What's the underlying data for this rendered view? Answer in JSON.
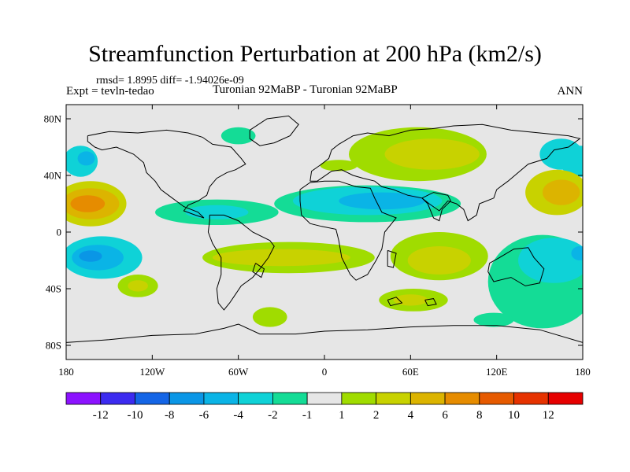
{
  "header": {
    "title": "Streamfunction Perturbation at 200 hPa (km2/s)",
    "rmsd_line": "rmsd= 1.8995 diff= -1.94026e-09",
    "expt_line": "Expt = tevln-tedao",
    "subtitle": "Turonian  92MaBP - Turonian  92MaBP",
    "season": "ANN"
  },
  "map": {
    "lon_range": [
      -180,
      180
    ],
    "lat_range": [
      -90,
      90
    ],
    "lon_ticks": [
      {
        "value": -180,
        "label": "180"
      },
      {
        "value": -120,
        "label": "120W"
      },
      {
        "value": -60,
        "label": "60W"
      },
      {
        "value": 0,
        "label": "0"
      },
      {
        "value": 60,
        "label": "60E"
      },
      {
        "value": 120,
        "label": "120E"
      },
      {
        "value": 180,
        "label": "180"
      }
    ],
    "lat_ticks": [
      {
        "value": 80,
        "label": "80N"
      },
      {
        "value": 40,
        "label": "40N"
      },
      {
        "value": 0,
        "label": "0"
      },
      {
        "value": -40,
        "label": "40S"
      },
      {
        "value": -80,
        "label": "80S"
      }
    ],
    "background_color": "#e6e6e6",
    "features": [
      {
        "name": "pacific-north-negative",
        "lon": 178,
        "lat": 50,
        "rlon": 14,
        "rlat": 11,
        "level": -3
      },
      {
        "name": "pacific-north-negative-east",
        "lon": -170,
        "lat": 50,
        "rlon": 12,
        "rlat": 11,
        "level": -3
      },
      {
        "name": "pacific-north-core",
        "lon": -166,
        "lat": 52,
        "rlon": 6,
        "rlat": 5,
        "level": -5
      },
      {
        "name": "pacific-positive-band",
        "lon": -163,
        "lat": 20,
        "rlon": 25,
        "rlat": 16,
        "level": 3
      },
      {
        "name": "pacific-positive-mid",
        "lon": -163,
        "lat": 20,
        "rlon": 20,
        "rlat": 11,
        "level": 5
      },
      {
        "name": "pacific-positive-core",
        "lon": -165,
        "lat": 20,
        "rlon": 12,
        "rlat": 6,
        "level": 7
      },
      {
        "name": "pacific-positive-west",
        "lon": 162,
        "lat": 28,
        "rlon": 22,
        "rlat": 16,
        "level": 3
      },
      {
        "name": "pacific-positive-west-core",
        "lon": 165,
        "lat": 28,
        "rlon": 13,
        "rlat": 9,
        "level": 5
      },
      {
        "name": "pacific-south-negative",
        "lon": -155,
        "lat": -18,
        "rlon": 28,
        "rlat": 15,
        "level": -3
      },
      {
        "name": "pacific-south-negative-mid",
        "lon": -158,
        "lat": -18,
        "rlon": 18,
        "rlat": 9,
        "level": -5
      },
      {
        "name": "pacific-south-core",
        "lon": -163,
        "lat": -17,
        "rlon": 8,
        "rlat": 4,
        "level": -7
      },
      {
        "name": "south-pacific-positive",
        "lon": -130,
        "lat": -38,
        "rlon": 14,
        "rlat": 8,
        "level": 1.5
      },
      {
        "name": "south-pacific-positive-core",
        "lon": -130,
        "lat": -38,
        "rlon": 7,
        "rlat": 4,
        "level": 3
      },
      {
        "name": "america-negative-band",
        "lon": -75,
        "lat": 14,
        "rlon": 43,
        "rlat": 9,
        "level": -1.5
      },
      {
        "name": "america-negative-core",
        "lon": -75,
        "lat": 14,
        "rlon": 22,
        "rlat": 5,
        "level": -3
      },
      {
        "name": "tethys-negative-band",
        "lon": 30,
        "lat": 20,
        "rlon": 65,
        "rlat": 13,
        "level": -1.5
      },
      {
        "name": "tethys-negative-mid",
        "lon": 30,
        "lat": 22,
        "rlon": 52,
        "rlat": 10,
        "level": -3
      },
      {
        "name": "tethys-negative-core",
        "lon": 40,
        "lat": 22,
        "rlon": 30,
        "rlat": 6,
        "level": -5
      },
      {
        "name": "north-atlantic-negative",
        "lon": -60,
        "lat": 68,
        "rlon": 12,
        "rlat": 6,
        "level": -1.5
      },
      {
        "name": "eurasia-positive",
        "lon": 65,
        "lat": 55,
        "rlon": 48,
        "rlat": 19,
        "level": 1.5
      },
      {
        "name": "eurasia-positive-core",
        "lon": 75,
        "lat": 55,
        "rlon": 33,
        "rlat": 11,
        "level": 3
      },
      {
        "name": "europe-positive",
        "lon": 10,
        "lat": 47,
        "rlon": 13,
        "rlat": 4,
        "level": 1.5
      },
      {
        "name": "north-pacific-west-negative",
        "lon": 165,
        "lat": 55,
        "rlon": 15,
        "rlat": 11,
        "level": -3
      },
      {
        "name": "south-america-positive-band",
        "lon": -25,
        "lat": -18,
        "rlon": 60,
        "rlat": 11,
        "level": 1.5
      },
      {
        "name": "south-america-positive-core",
        "lon": -30,
        "lat": -18,
        "rlon": 48,
        "rlat": 6,
        "level": 3
      },
      {
        "name": "indian-positive",
        "lon": 80,
        "lat": -17,
        "rlon": 34,
        "rlat": 17,
        "level": 1.5
      },
      {
        "name": "indian-positive-core",
        "lon": 80,
        "lat": -20,
        "rlon": 22,
        "rlat": 10,
        "level": 3
      },
      {
        "name": "indian-south-positive",
        "lon": 62,
        "lat": -48,
        "rlon": 24,
        "rlat": 8,
        "level": 1.5
      },
      {
        "name": "indian-south-core",
        "lon": 60,
        "lat": -48,
        "rlon": 12,
        "rlat": 4,
        "level": 3
      },
      {
        "name": "southern-ocean-positive",
        "lon": -38,
        "lat": -60,
        "rlon": 12,
        "rlat": 7,
        "level": 1.5
      },
      {
        "name": "southeast-pacific-negative",
        "lon": 152,
        "lat": -35,
        "rlon": 38,
        "rlat": 33,
        "level": -1.5
      },
      {
        "name": "southeast-pacific-negative-mid",
        "lon": 160,
        "lat": -20,
        "rlon": 25,
        "rlat": 16,
        "level": -3
      },
      {
        "name": "southeast-pacific-negative-core",
        "lon": 178,
        "lat": -15,
        "rlon": 6,
        "rlat": 5,
        "level": -5
      },
      {
        "name": "southern-pacific-patch",
        "lon": 118,
        "lat": -62,
        "rlon": 14,
        "rlat": 5,
        "level": -1.5
      }
    ],
    "coastlines": [
      {
        "name": "north-america",
        "points": [
          [
            -165,
            68
          ],
          [
            -150,
            71
          ],
          [
            -130,
            70
          ],
          [
            -110,
            72
          ],
          [
            -95,
            70
          ],
          [
            -85,
            67
          ],
          [
            -78,
            62
          ],
          [
            -65,
            60
          ],
          [
            -58,
            52
          ],
          [
            -55,
            48
          ],
          [
            -62,
            44
          ],
          [
            -68,
            42
          ],
          [
            -75,
            38
          ],
          [
            -80,
            32
          ],
          [
            -82,
            26
          ],
          [
            -88,
            22
          ],
          [
            -95,
            19
          ],
          [
            -98,
            15
          ],
          [
            -90,
            12
          ],
          [
            -84,
            10
          ],
          [
            -88,
            14
          ],
          [
            -98,
            18
          ],
          [
            -106,
            24
          ],
          [
            -114,
            30
          ],
          [
            -118,
            36
          ],
          [
            -124,
            42
          ],
          [
            -126,
            49
          ],
          [
            -133,
            55
          ],
          [
            -145,
            60
          ],
          [
            -155,
            58
          ],
          [
            -160,
            60
          ],
          [
            -165,
            64
          ],
          [
            -165,
            68
          ]
        ]
      },
      {
        "name": "greenland",
        "points": [
          [
            -52,
            72
          ],
          [
            -40,
            80
          ],
          [
            -25,
            82
          ],
          [
            -18,
            76
          ],
          [
            -24,
            68
          ],
          [
            -35,
            63
          ],
          [
            -45,
            61
          ],
          [
            -52,
            66
          ],
          [
            -52,
            72
          ]
        ]
      },
      {
        "name": "south-america",
        "points": [
          [
            -80,
            12
          ],
          [
            -70,
            12
          ],
          [
            -60,
            8
          ],
          [
            -50,
            0
          ],
          [
            -38,
            -6
          ],
          [
            -35,
            -10
          ],
          [
            -39,
            -18
          ],
          [
            -45,
            -26
          ],
          [
            -50,
            -32
          ],
          [
            -58,
            -38
          ],
          [
            -62,
            -44
          ],
          [
            -66,
            -50
          ],
          [
            -70,
            -55
          ],
          [
            -74,
            -50
          ],
          [
            -75,
            -40
          ],
          [
            -72,
            -30
          ],
          [
            -72,
            -18
          ],
          [
            -78,
            -8
          ],
          [
            -81,
            0
          ],
          [
            -80,
            8
          ],
          [
            -80,
            12
          ]
        ]
      },
      {
        "name": "africa",
        "points": [
          [
            -17,
            30
          ],
          [
            -10,
            35
          ],
          [
            0,
            36
          ],
          [
            10,
            36
          ],
          [
            22,
            32
          ],
          [
            32,
            31
          ],
          [
            35,
            24
          ],
          [
            40,
            14
          ],
          [
            50,
            10
          ],
          [
            42,
            0
          ],
          [
            40,
            -12
          ],
          [
            36,
            -20
          ],
          [
            30,
            -30
          ],
          [
            22,
            -34
          ],
          [
            18,
            -30
          ],
          [
            12,
            -18
          ],
          [
            10,
            -6
          ],
          [
            8,
            2
          ],
          [
            -2,
            4
          ],
          [
            -10,
            6
          ],
          [
            -16,
            12
          ],
          [
            -17,
            22
          ],
          [
            -17,
            30
          ]
        ]
      },
      {
        "name": "eurasia",
        "points": [
          [
            -10,
            36
          ],
          [
            -9,
            43
          ],
          [
            -2,
            48
          ],
          [
            3,
            52
          ],
          [
            5,
            58
          ],
          [
            10,
            62
          ],
          [
            20,
            68
          ],
          [
            30,
            70
          ],
          [
            45,
            68
          ],
          [
            60,
            72
          ],
          [
            75,
            73
          ],
          [
            90,
            75
          ],
          [
            110,
            76
          ],
          [
            130,
            72
          ],
          [
            150,
            70
          ],
          [
            170,
            68
          ],
          [
            178,
            66
          ],
          [
            170,
            60
          ],
          [
            160,
            58
          ],
          [
            155,
            52
          ],
          [
            142,
            48
          ],
          [
            135,
            42
          ],
          [
            128,
            36
          ],
          [
            120,
            30
          ],
          [
            118,
            24
          ],
          [
            108,
            20
          ],
          [
            106,
            12
          ],
          [
            100,
            8
          ],
          [
            97,
            16
          ],
          [
            92,
            20
          ],
          [
            86,
            22
          ],
          [
            80,
            15
          ],
          [
            73,
            20
          ],
          [
            68,
            24
          ],
          [
            58,
            26
          ],
          [
            48,
            30
          ],
          [
            40,
            32
          ],
          [
            35,
            36
          ],
          [
            27,
            38
          ],
          [
            20,
            40
          ],
          [
            12,
            44
          ],
          [
            5,
            43
          ],
          [
            -5,
            36
          ],
          [
            -10,
            36
          ]
        ]
      },
      {
        "name": "india",
        "points": [
          [
            68,
            24
          ],
          [
            72,
            20
          ],
          [
            76,
            10
          ],
          [
            80,
            8
          ],
          [
            82,
            16
          ],
          [
            88,
            22
          ],
          [
            86,
            26
          ],
          [
            76,
            28
          ],
          [
            68,
            24
          ]
        ]
      },
      {
        "name": "australia",
        "points": [
          [
            115,
            -22
          ],
          [
            122,
            -18
          ],
          [
            132,
            -12
          ],
          [
            142,
            -11
          ],
          [
            146,
            -18
          ],
          [
            153,
            -26
          ],
          [
            150,
            -36
          ],
          [
            140,
            -38
          ],
          [
            130,
            -32
          ],
          [
            118,
            -35
          ],
          [
            114,
            -28
          ],
          [
            115,
            -22
          ]
        ]
      },
      {
        "name": "antarctica",
        "points": [
          [
            -180,
            -78
          ],
          [
            -150,
            -76
          ],
          [
            -120,
            -73
          ],
          [
            -90,
            -72
          ],
          [
            -70,
            -68
          ],
          [
            -60,
            -65
          ],
          [
            -45,
            -72
          ],
          [
            -20,
            -72
          ],
          [
            0,
            -70
          ],
          [
            30,
            -69
          ],
          [
            60,
            -67
          ],
          [
            90,
            -66
          ],
          [
            120,
            -66
          ],
          [
            150,
            -69
          ],
          [
            180,
            -78
          ]
        ]
      },
      {
        "name": "madagascar",
        "points": [
          [
            44,
            -13
          ],
          [
            50,
            -15
          ],
          [
            48,
            -25
          ],
          [
            44,
            -24
          ],
          [
            44,
            -13
          ]
        ]
      },
      {
        "name": "south-pacific-island",
        "points": [
          [
            -48,
            -22
          ],
          [
            -42,
            -26
          ],
          [
            -44,
            -32
          ],
          [
            -50,
            -28
          ],
          [
            -48,
            -22
          ]
        ]
      },
      {
        "name": "kerguelen",
        "points": [
          [
            70,
            -48
          ],
          [
            76,
            -47
          ],
          [
            78,
            -51
          ],
          [
            72,
            -52
          ],
          [
            70,
            -48
          ]
        ]
      },
      {
        "name": "southern-ocean-island",
        "points": [
          [
            44,
            -48
          ],
          [
            50,
            -46
          ],
          [
            54,
            -50
          ],
          [
            46,
            -52
          ],
          [
            44,
            -48
          ]
        ]
      }
    ]
  },
  "colorbar": {
    "colors": [
      "#8c12ff",
      "#3c2bf0",
      "#1465e6",
      "#0a96e6",
      "#0ab4e6",
      "#0fd2d7",
      "#14dc96",
      "#e6e6e6",
      "#a0dc00",
      "#c8d200",
      "#dcb400",
      "#e68c00",
      "#e65a00",
      "#e63200",
      "#e60000"
    ],
    "labels": [
      "-12",
      "-10",
      "-8",
      "-6",
      "-4",
      "-2",
      "-1",
      "1",
      "2",
      "4",
      "6",
      "8",
      "10",
      "12"
    ]
  }
}
